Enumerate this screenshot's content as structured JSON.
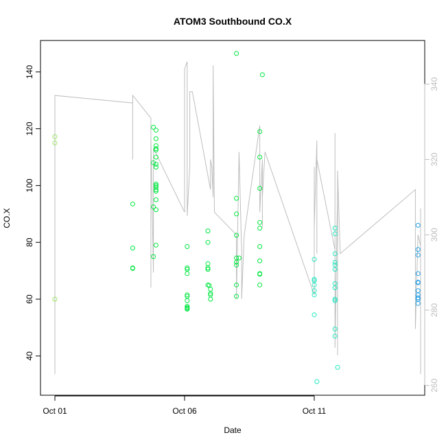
{
  "chart_data": {
    "type": "scatter",
    "title": "ATOM3 Southbound CO.X",
    "xlabel": "Date",
    "ylabel": "CO.X",
    "x_ticks": [
      "Oct 01",
      "Oct 06",
      "Oct 11"
    ],
    "x_tick_values": [
      1,
      6,
      11
    ],
    "xlim": [
      1,
      15.5
    ],
    "ylim": [
      28,
      150
    ],
    "y_ticks": [
      40,
      60,
      80,
      100,
      120,
      140
    ],
    "y2_ticks": [
      260,
      280,
      300,
      320,
      340
    ],
    "y2lim": [
      258,
      352
    ],
    "grid": false,
    "legend": "none",
    "colors": {
      "points_early": "#9be564",
      "points_mid": "#00e640",
      "points_late": "#22e8c0",
      "points_last": "#22a0e8",
      "line": "#bdbdbd",
      "right_axis": "#bdbdbd"
    },
    "points": [
      [
        1.0,
        117.2
      ],
      [
        1.0,
        115.0
      ],
      [
        1.0,
        60.0
      ],
      [
        4.0,
        93.5
      ],
      [
        4.0,
        78.0
      ],
      [
        4.0,
        71.0
      ],
      [
        4.0,
        70.8
      ],
      [
        4.8,
        120.5
      ],
      [
        4.8,
        108.0
      ],
      [
        4.8,
        92.5
      ],
      [
        4.8,
        75.0
      ],
      [
        4.9,
        119.5
      ],
      [
        4.9,
        116.5
      ],
      [
        4.9,
        114.0
      ],
      [
        4.9,
        113.0
      ],
      [
        4.9,
        112.5
      ],
      [
        4.9,
        110.0
      ],
      [
        4.9,
        107.5
      ],
      [
        4.9,
        106.5
      ],
      [
        4.9,
        100.5
      ],
      [
        4.9,
        100.0
      ],
      [
        4.9,
        99.5
      ],
      [
        4.9,
        98.5
      ],
      [
        4.9,
        98.0
      ],
      [
        4.9,
        95.0
      ],
      [
        4.9,
        91.5
      ],
      [
        4.9,
        79.0
      ],
      [
        6.1,
        78.5
      ],
      [
        6.1,
        71.0
      ],
      [
        6.1,
        70.5
      ],
      [
        6.1,
        69.0
      ],
      [
        6.1,
        61.5
      ],
      [
        6.1,
        61.0
      ],
      [
        6.1,
        59.5
      ],
      [
        6.1,
        57.5
      ],
      [
        6.1,
        57.0
      ],
      [
        6.1,
        56.8
      ],
      [
        6.1,
        56.5
      ],
      [
        6.9,
        84.0
      ],
      [
        6.9,
        80.0
      ],
      [
        6.9,
        72.5
      ],
      [
        6.9,
        71.0
      ],
      [
        6.9,
        70.5
      ],
      [
        6.9,
        65.0
      ],
      [
        6.95,
        64.8
      ],
      [
        7.0,
        63.5
      ],
      [
        7.0,
        62.0
      ],
      [
        7.0,
        61.5
      ],
      [
        7.0,
        60.0
      ],
      [
        8.0,
        146.5
      ],
      [
        8.0,
        95.5
      ],
      [
        8.0,
        90.0
      ],
      [
        8.0,
        82.5
      ],
      [
        8.0,
        74.5
      ],
      [
        8.0,
        73.0
      ],
      [
        8.0,
        72.0
      ],
      [
        8.0,
        65.0
      ],
      [
        8.0,
        61.0
      ],
      [
        8.1,
        74.5
      ],
      [
        8.9,
        119.0
      ],
      [
        8.9,
        110.0
      ],
      [
        8.9,
        99.0
      ],
      [
        8.9,
        87.0
      ],
      [
        8.9,
        85.0
      ],
      [
        8.9,
        78.5
      ],
      [
        8.9,
        73.5
      ],
      [
        8.9,
        69.0
      ],
      [
        8.9,
        68.8
      ],
      [
        8.9,
        65.0
      ],
      [
        9.0,
        139.0
      ],
      [
        11.0,
        74.0
      ],
      [
        11.0,
        67.0
      ],
      [
        11.0,
        66.5
      ],
      [
        11.0,
        65.0
      ],
      [
        11.0,
        63.0
      ],
      [
        11.0,
        61.5
      ],
      [
        11.0,
        54.5
      ],
      [
        11.1,
        31.0
      ],
      [
        11.8,
        85.0
      ],
      [
        11.8,
        83.0
      ],
      [
        11.8,
        76.0
      ],
      [
        11.8,
        73.0
      ],
      [
        11.8,
        72.0
      ],
      [
        11.8,
        70.5
      ],
      [
        11.8,
        65.5
      ],
      [
        11.8,
        64.0
      ],
      [
        11.8,
        60.0
      ],
      [
        11.8,
        59.5
      ],
      [
        11.8,
        49.5
      ],
      [
        11.8,
        47.0
      ],
      [
        11.9,
        36.0
      ],
      [
        15.0,
        86.0
      ],
      [
        15.0,
        77.5
      ],
      [
        15.0,
        75.5
      ],
      [
        15.0,
        69.0
      ],
      [
        15.0,
        66.0
      ],
      [
        15.0,
        65.8
      ],
      [
        15.0,
        63.0
      ],
      [
        15.0,
        61.5
      ],
      [
        15.0,
        60.5
      ],
      [
        15.0,
        60.0
      ],
      [
        15.0,
        58.5
      ]
    ],
    "line_series": {
      "axis": "right",
      "points": [
        [
          1.0,
          263
        ],
        [
          1.0,
          337
        ],
        [
          4.0,
          335
        ],
        [
          4.0,
          320
        ],
        [
          4.0,
          330
        ],
        [
          4.0,
          337
        ],
        [
          4.7,
          331
        ],
        [
          4.7,
          318
        ],
        [
          4.7,
          300
        ],
        [
          4.7,
          286
        ],
        [
          4.7,
          326
        ],
        [
          4.8,
          290
        ],
        [
          4.8,
          323
        ],
        [
          6.0,
          306
        ],
        [
          6.0,
          344
        ],
        [
          6.1,
          346
        ],
        [
          6.1,
          305
        ],
        [
          6.2,
          318
        ],
        [
          6.2,
          338
        ],
        [
          6.3,
          338
        ],
        [
          7.0,
          312
        ],
        [
          7.0,
          320
        ],
        [
          7.05,
          318
        ],
        [
          7.1,
          310
        ],
        [
          7.1,
          345
        ],
        [
          7.15,
          306
        ],
        [
          8.0,
          300
        ],
        [
          8.0,
          297
        ],
        [
          8.0,
          283
        ],
        [
          8.1,
          322
        ],
        [
          8.2,
          295
        ],
        [
          8.2,
          283
        ],
        [
          8.3,
          300
        ],
        [
          8.9,
          329
        ],
        [
          8.9,
          306
        ],
        [
          9.0,
          320
        ],
        [
          9.0,
          302
        ],
        [
          9.0,
          310
        ],
        [
          9.1,
          322
        ],
        [
          11.0,
          284
        ],
        [
          11.0,
          318
        ],
        [
          11.0,
          302
        ],
        [
          11.1,
          325
        ],
        [
          11.1,
          295
        ],
        [
          11.1,
          320
        ],
        [
          11.8,
          296
        ],
        [
          11.8,
          327
        ],
        [
          11.8,
          270
        ],
        [
          11.9,
          312
        ],
        [
          11.9,
          268
        ],
        [
          11.9,
          317
        ],
        [
          12.0,
          295
        ],
        [
          14.9,
          312
        ],
        [
          14.9,
          275
        ],
        [
          15.0,
          300
        ],
        [
          15.1,
          297
        ],
        [
          15.1,
          263
        ],
        [
          15.1,
          307
        ]
      ]
    }
  }
}
